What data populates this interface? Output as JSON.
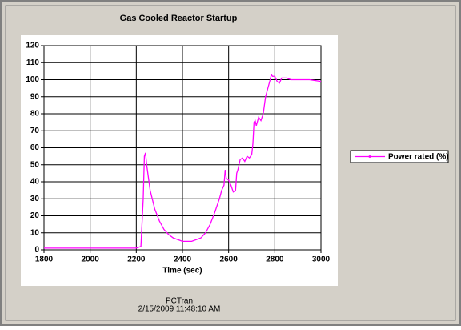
{
  "chart_data": {
    "type": "line",
    "title": "Gas Cooled Reactor Startup",
    "xlabel": "Time (sec)",
    "x": [
      1800,
      2200,
      2220,
      2230,
      2235,
      2240,
      2245,
      2260,
      2280,
      2300,
      2320,
      2340,
      2360,
      2380,
      2400,
      2420,
      2440,
      2460,
      2480,
      2500,
      2520,
      2540,
      2560,
      2570,
      2580,
      2585,
      2590,
      2600,
      2610,
      2620,
      2630,
      2635,
      2640,
      2650,
      2660,
      2670,
      2680,
      2690,
      2700,
      2705,
      2710,
      2715,
      2720,
      2730,
      2740,
      2750,
      2760,
      2770,
      2780,
      2785,
      2790,
      2800,
      2810,
      2820,
      2830,
      2850,
      2870,
      2900,
      2950,
      3000
    ],
    "series": [
      {
        "name": "Power rated (%)",
        "color": "#ff00ff",
        "values": [
          1,
          1,
          2,
          30,
          55,
          57,
          50,
          35,
          24,
          17,
          12,
          9,
          7,
          6,
          5,
          5,
          5,
          6,
          7,
          10,
          15,
          22,
          30,
          35,
          38,
          47,
          42,
          41,
          38,
          34,
          35,
          45,
          47,
          53,
          54,
          52,
          55,
          54,
          56,
          62,
          75,
          76,
          73,
          78,
          76,
          80,
          90,
          95,
          100,
          103,
          102,
          102,
          99,
          98,
          101,
          101,
          100,
          100,
          100,
          99
        ]
      }
    ],
    "xlim": [
      1800,
      3000
    ],
    "xticks": [
      1800,
      2000,
      2200,
      2400,
      2600,
      2800,
      3000
    ],
    "ylim": [
      0,
      120
    ],
    "yticks": [
      0,
      10,
      20,
      30,
      40,
      50,
      60,
      70,
      80,
      90,
      100,
      110,
      120
    ],
    "grid": true,
    "legend": "right"
  },
  "footer": {
    "app": "PCTran",
    "timestamp": "2/15/2009 11:48:10 AM"
  }
}
